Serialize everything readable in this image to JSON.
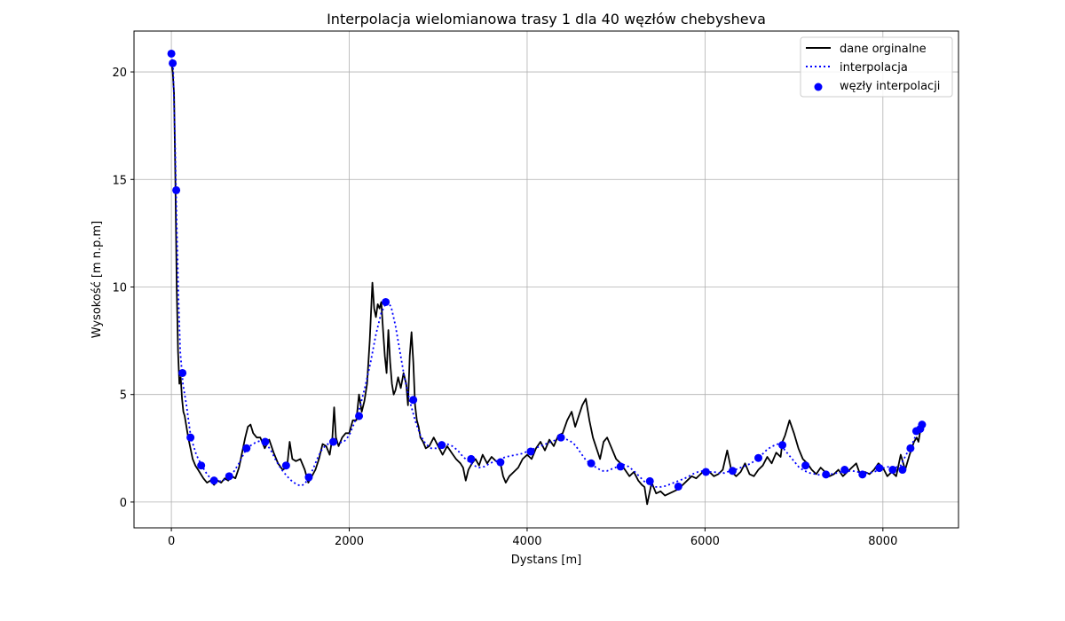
{
  "chart_data": {
    "type": "line",
    "title": "Interpolacja wielomianowa trasy 1 dla 40 węzłów chebysheva",
    "xlabel": "Dystans [m]",
    "ylabel": "Wysokość [m n.p.m]",
    "xlim": [
      -420,
      8850
    ],
    "ylim": [
      -1.2,
      21.9
    ],
    "xticks": [
      0,
      2000,
      4000,
      6000,
      8000
    ],
    "yticks": [
      0,
      5,
      10,
      15,
      20
    ],
    "grid": true,
    "legend_position": "top-right",
    "series": [
      {
        "name": "dane orginalne",
        "style": "solid",
        "color": "#000000",
        "x": [
          0,
          15,
          30,
          45,
          60,
          75,
          90,
          105,
          120,
          135,
          150,
          170,
          190,
          210,
          240,
          270,
          300,
          330,
          360,
          400,
          440,
          480,
          520,
          560,
          600,
          640,
          680,
          720,
          760,
          800,
          830,
          860,
          890,
          920,
          960,
          1000,
          1050,
          1100,
          1150,
          1200,
          1250,
          1300,
          1330,
          1360,
          1400,
          1450,
          1500,
          1540,
          1580,
          1620,
          1660,
          1700,
          1740,
          1780,
          1810,
          1830,
          1850,
          1880,
          1920,
          1960,
          2000,
          2040,
          2080,
          2110,
          2140,
          2170,
          2200,
          2230,
          2260,
          2280,
          2300,
          2320,
          2340,
          2360,
          2380,
          2400,
          2420,
          2440,
          2460,
          2480,
          2500,
          2520,
          2550,
          2580,
          2610,
          2640,
          2660,
          2680,
          2700,
          2720,
          2740,
          2760,
          2780,
          2800,
          2830,
          2860,
          2900,
          2950,
          3000,
          3050,
          3100,
          3150,
          3200,
          3250,
          3280,
          3310,
          3340,
          3380,
          3420,
          3460,
          3500,
          3550,
          3600,
          3650,
          3700,
          3730,
          3760,
          3800,
          3850,
          3900,
          3950,
          4000,
          4050,
          4100,
          4150,
          4200,
          4250,
          4300,
          4350,
          4400,
          4450,
          4500,
          4540,
          4580,
          4620,
          4660,
          4700,
          4740,
          4780,
          4820,
          4860,
          4900,
          4950,
          5000,
          5050,
          5100,
          5150,
          5200,
          5250,
          5290,
          5320,
          5350,
          5400,
          5450,
          5500,
          5550,
          5600,
          5650,
          5700,
          5750,
          5800,
          5850,
          5900,
          5950,
          6000,
          6050,
          6100,
          6150,
          6200,
          6250,
          6300,
          6350,
          6400,
          6450,
          6500,
          6550,
          6600,
          6650,
          6700,
          6750,
          6800,
          6850,
          6870,
          6900,
          6950,
          7000,
          7050,
          7100,
          7150,
          7200,
          7250,
          7300,
          7350,
          7400,
          7450,
          7500,
          7550,
          7600,
          7650,
          7700,
          7750,
          7800,
          7850,
          7900,
          7950,
          8000,
          8050,
          8100,
          8150,
          8200,
          8250,
          8300,
          8350,
          8380,
          8400,
          8420,
          8440
        ],
        "y": [
          20.5,
          20.0,
          19.0,
          15.0,
          10.0,
          7.0,
          5.5,
          5.8,
          4.8,
          4.2,
          4.0,
          3.5,
          3.0,
          2.6,
          2.0,
          1.7,
          1.5,
          1.3,
          1.1,
          0.9,
          1.0,
          0.8,
          1.0,
          0.9,
          1.1,
          1.0,
          1.2,
          1.1,
          1.6,
          2.4,
          3.0,
          3.5,
          3.6,
          3.2,
          3.0,
          3.0,
          2.5,
          2.9,
          2.3,
          1.8,
          1.5,
          1.6,
          2.8,
          2.0,
          1.9,
          2.0,
          1.5,
          0.9,
          1.2,
          1.5,
          2.0,
          2.7,
          2.6,
          2.2,
          3.0,
          4.4,
          3.0,
          2.6,
          3.0,
          3.2,
          3.2,
          3.8,
          3.8,
          5.0,
          4.2,
          4.7,
          5.5,
          7.5,
          10.2,
          9.0,
          8.6,
          9.2,
          9.0,
          9.3,
          8.0,
          6.8,
          6.0,
          8.0,
          6.5,
          5.5,
          5.0,
          5.2,
          5.8,
          5.3,
          6.0,
          5.5,
          4.5,
          6.8,
          7.9,
          6.5,
          4.5,
          3.8,
          3.5,
          3.0,
          2.8,
          2.5,
          2.6,
          3.0,
          2.6,
          2.2,
          2.6,
          2.3,
          2.0,
          1.8,
          1.6,
          1.0,
          1.5,
          1.8,
          2.0,
          1.7,
          2.2,
          1.8,
          2.1,
          1.9,
          1.8,
          1.2,
          0.9,
          1.2,
          1.4,
          1.6,
          2.0,
          2.2,
          2.0,
          2.5,
          2.8,
          2.4,
          2.9,
          2.6,
          3.1,
          3.2,
          3.8,
          4.2,
          3.5,
          4.0,
          4.5,
          4.8,
          3.8,
          3.0,
          2.5,
          2.0,
          2.8,
          3.0,
          2.5,
          2.0,
          1.8,
          1.5,
          1.2,
          1.4,
          1.0,
          0.8,
          0.7,
          -0.1,
          0.9,
          0.4,
          0.5,
          0.3,
          0.4,
          0.5,
          0.6,
          0.8,
          1.0,
          1.2,
          1.1,
          1.3,
          1.5,
          1.4,
          1.2,
          1.3,
          1.5,
          2.4,
          1.4,
          1.2,
          1.4,
          1.8,
          1.3,
          1.2,
          1.5,
          1.7,
          2.1,
          1.8,
          2.3,
          2.1,
          2.8,
          3.1,
          3.8,
          3.2,
          2.5,
          2.0,
          1.8,
          1.5,
          1.3,
          1.6,
          1.4,
          1.2,
          1.3,
          1.5,
          1.2,
          1.4,
          1.6,
          1.8,
          1.2,
          1.4,
          1.3,
          1.5,
          1.8,
          1.6,
          1.2,
          1.4,
          1.2,
          2.2,
          1.5,
          2.2,
          2.8,
          3.0,
          2.8,
          3.3,
          3.6
        ]
      },
      {
        "name": "interpolacja",
        "style": "dotted",
        "color": "#0000ff",
        "x": [
          0,
          20,
          40,
          60,
          80,
          100,
          130,
          170,
          220,
          280,
          340,
          400,
          460,
          520,
          580,
          640,
          700,
          760,
          820,
          880,
          940,
          1000,
          1060,
          1120,
          1180,
          1240,
          1300,
          1360,
          1420,
          1460,
          1500,
          1550,
          1600,
          1650,
          1700,
          1760,
          1820,
          1880,
          1940,
          2000,
          2060,
          2120,
          2180,
          2240,
          2300,
          2360,
          2420,
          2470,
          2520,
          2570,
          2620,
          2680,
          2740,
          2800,
          2860,
          2920,
          2980,
          3040,
          3100,
          3160,
          3220,
          3280,
          3340,
          3400,
          3460,
          3520,
          3580,
          3640,
          3700,
          3760,
          3820,
          3880,
          3940,
          4000,
          4060,
          4120,
          4180,
          4240,
          4300,
          4360,
          4420,
          4480,
          4540,
          4600,
          4660,
          4720,
          4780,
          4840,
          4900,
          4960,
          5020,
          5080,
          5140,
          5200,
          5260,
          5320,
          5380,
          5440,
          5500,
          5560,
          5620,
          5680,
          5740,
          5800,
          5860,
          5920,
          5980,
          6040,
          6100,
          6160,
          6220,
          6280,
          6340,
          6400,
          6460,
          6520,
          6580,
          6640,
          6700,
          6760,
          6820,
          6880,
          6940,
          7000,
          7060,
          7120,
          7180,
          7240,
          7300,
          7360,
          7420,
          7480,
          7540,
          7600,
          7660,
          7720,
          7780,
          7840,
          7900,
          7960,
          8020,
          8080,
          8140,
          8200,
          8260,
          8320,
          8360,
          8400,
          8440
        ],
        "y": [
          20.8,
          20.2,
          17.0,
          13.0,
          9.5,
          7.0,
          5.5,
          4.5,
          3.0,
          2.2,
          1.7,
          1.3,
          1.0,
          0.95,
          1.0,
          1.15,
          1.4,
          1.8,
          2.3,
          2.6,
          2.75,
          2.85,
          2.75,
          2.4,
          1.9,
          1.5,
          1.2,
          0.95,
          0.8,
          0.75,
          0.85,
          1.15,
          1.6,
          2.1,
          2.5,
          2.7,
          2.75,
          2.75,
          2.8,
          3.1,
          3.7,
          4.4,
          5.4,
          6.5,
          7.8,
          8.8,
          9.3,
          9.1,
          8.2,
          7.0,
          5.8,
          4.7,
          3.8,
          3.1,
          2.7,
          2.5,
          2.5,
          2.6,
          2.7,
          2.6,
          2.4,
          2.1,
          1.9,
          1.7,
          1.6,
          1.65,
          1.8,
          1.9,
          2.0,
          2.1,
          2.15,
          2.2,
          2.25,
          2.35,
          2.45,
          2.55,
          2.65,
          2.75,
          2.85,
          2.95,
          2.95,
          2.85,
          2.65,
          2.3,
          1.95,
          1.75,
          1.6,
          1.45,
          1.45,
          1.55,
          1.65,
          1.75,
          1.65,
          1.45,
          1.2,
          0.95,
          0.8,
          0.7,
          0.7,
          0.75,
          0.85,
          0.95,
          1.05,
          1.15,
          1.3,
          1.4,
          1.45,
          1.4,
          1.4,
          1.35,
          1.35,
          1.45,
          1.5,
          1.6,
          1.7,
          1.8,
          2.0,
          2.2,
          2.45,
          2.6,
          2.7,
          2.5,
          2.2,
          1.9,
          1.6,
          1.45,
          1.35,
          1.3,
          1.25,
          1.25,
          1.3,
          1.35,
          1.4,
          1.45,
          1.45,
          1.4,
          1.35,
          1.35,
          1.4,
          1.5,
          1.6,
          1.65,
          1.6,
          1.7,
          2.2,
          2.6,
          3.0,
          3.3,
          3.55
        ]
      },
      {
        "name": "węzły interpolacji",
        "style": "markers",
        "color": "#0000ff",
        "x": [
          0,
          15,
          55,
          125,
          215,
          335,
          480,
          650,
          845,
          1055,
          1290,
          1545,
          1820,
          2110,
          2410,
          2720,
          3040,
          3370,
          3700,
          4040,
          4380,
          4720,
          5050,
          5380,
          5700,
          6010,
          6310,
          6600,
          6870,
          7130,
          7360,
          7570,
          7770,
          7960,
          8110,
          8220,
          8310,
          8375,
          8420,
          8440
        ],
        "y": [
          20.85,
          20.4,
          14.5,
          6.0,
          3.0,
          1.7,
          1.0,
          1.2,
          2.5,
          2.8,
          1.7,
          1.15,
          2.8,
          4.0,
          9.3,
          4.75,
          2.65,
          2.0,
          1.85,
          2.35,
          3.0,
          1.8,
          1.65,
          0.97,
          0.72,
          1.4,
          1.45,
          2.05,
          2.65,
          1.7,
          1.28,
          1.5,
          1.28,
          1.58,
          1.5,
          1.5,
          2.5,
          3.3,
          3.4,
          3.6
        ]
      }
    ]
  }
}
